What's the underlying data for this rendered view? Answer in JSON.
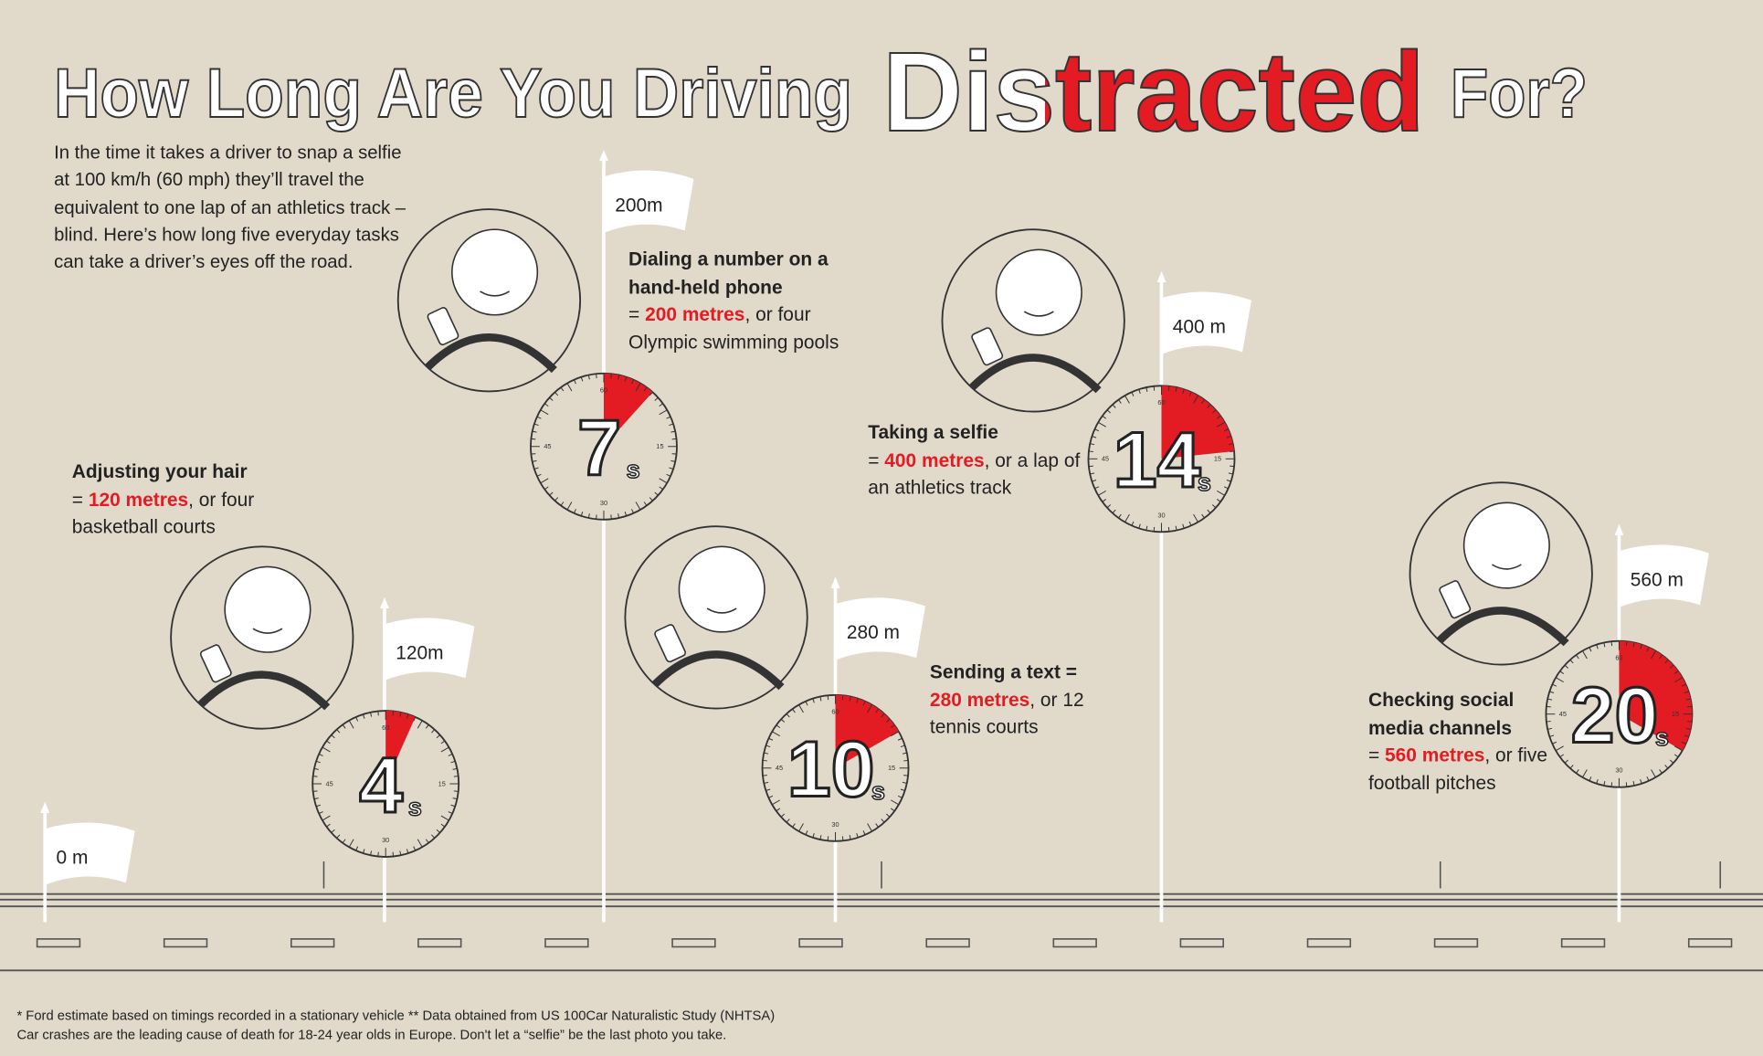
{
  "title": {
    "parts": [
      "How Long Are You Driving",
      "Distracted",
      "For?"
    ]
  },
  "intro": "In the time it takes a driver to snap a selfie at 100 km/h (60 mph) they’ll travel the equivalent to one lap of an athletics track – blind. Here’s how long five everyday tasks can take a driver’s eyes off the road.",
  "start_flag": "0 m",
  "dial_labels": [
    60,
    15,
    30,
    45
  ],
  "tasks": [
    {
      "flag": "120m",
      "name": "Adjusting your hair",
      "prefix": "= ",
      "highlight": "120 metres",
      "rest": ", or four basketball courts",
      "seconds": 4,
      "unit": "s"
    },
    {
      "flag": "200m",
      "name": "Dialing a number on a hand-held phone",
      "prefix": "= ",
      "highlight": "200 metres",
      "rest": ", or four Olympic swimming pools",
      "seconds": 7,
      "unit": "s"
    },
    {
      "flag": "280 m",
      "name": "Sending a text =",
      "highlight": "280 metres",
      "rest": ", or 12 tennis courts",
      "seconds": 10,
      "unit": "s"
    },
    {
      "flag": "400 m",
      "name": "Taking a selfie",
      "prefix": "= ",
      "highlight": "400 metres",
      "rest": ", or a lap of an athletics track",
      "seconds": 14,
      "unit": "s"
    },
    {
      "flag": "560 m",
      "name": "Checking social media channels",
      "prefix": "= ",
      "highlight": "560 metres",
      "rest": ", or five football pitches",
      "seconds": 20,
      "unit": "s"
    }
  ],
  "footnotes": [
    "* Ford estimate based on timings recorded in a stationary vehicle ** Data obtained from US 100Car Naturalistic Study (NHTSA)",
    "Car crashes are the leading cause of death for 18-24 year olds in Europe. Don't let a “selfie” be the last photo you take."
  ]
}
